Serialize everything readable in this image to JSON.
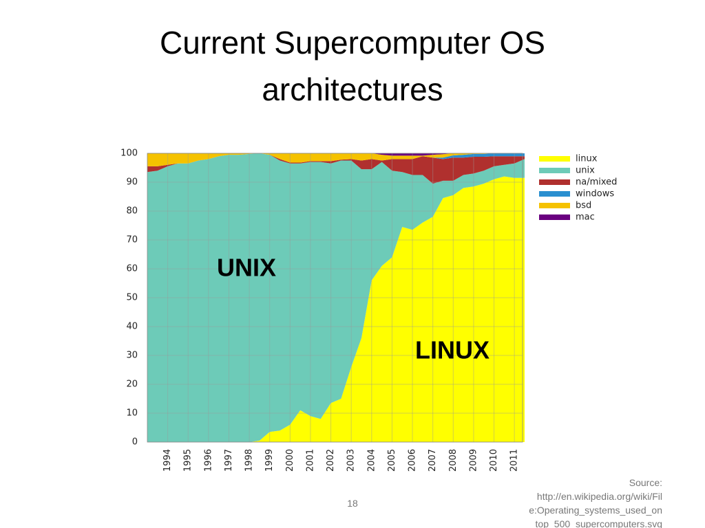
{
  "slide": {
    "title": "Current Supercomputer OS architectures",
    "page_number": "18",
    "source_lines": [
      "Source:",
      "http://en.wikipedia.org/wiki/Fil",
      "e:Operating_systems_used_on",
      "top_500_supercomputers.svg"
    ]
  },
  "chart_data": {
    "type": "stacked_area",
    "x": [
      1993,
      1993.5,
      1994,
      1994.5,
      1995,
      1995.5,
      1996,
      1996.5,
      1997,
      1997.5,
      1998,
      1998.5,
      1999,
      1999.5,
      2000,
      2000.5,
      2001,
      2001.5,
      2002,
      2002.5,
      2003,
      2003.5,
      2004,
      2004.5,
      2005,
      2005.5,
      2006,
      2006.5,
      2007,
      2007.5,
      2008,
      2008.5,
      2009,
      2009.5,
      2010,
      2010.5,
      2011,
      2011.5
    ],
    "xlim": [
      1993,
      2011.4
    ],
    "xticks": [
      1994,
      1995,
      1996,
      1997,
      1998,
      1999,
      2000,
      2001,
      2002,
      2003,
      2004,
      2005,
      2006,
      2007,
      2008,
      2009,
      2010,
      2011
    ],
    "ylim": [
      0,
      100
    ],
    "yticks": [
      0,
      10,
      20,
      30,
      40,
      50,
      60,
      70,
      80,
      90,
      100
    ],
    "grid": true,
    "legend": "right",
    "series": [
      {
        "name": "linux",
        "color": "#ffff00",
        "values": [
          0,
          0,
          0,
          0,
          0,
          0,
          0,
          0,
          0,
          0,
          0,
          0.5,
          3.5,
          4,
          6,
          11,
          9,
          8,
          13.5,
          15,
          26,
          36,
          56,
          61,
          64,
          74.5,
          73.5,
          76,
          78,
          84.5,
          85.5,
          88,
          88.5,
          89.5,
          91,
          92,
          91.5,
          91.5
        ]
      },
      {
        "name": "unix",
        "color": "#6dcbb8",
        "values": [
          93.5,
          94,
          95.5,
          96.5,
          96.5,
          97.5,
          98,
          99,
          99.5,
          99.5,
          99.8,
          99.5,
          96,
          93.5,
          90.5,
          85.5,
          88,
          89,
          83,
          82.5,
          71.5,
          58.5,
          38.5,
          36,
          30,
          19,
          19,
          16.5,
          11.5,
          6,
          5,
          4.5,
          4.5,
          4.5,
          4.5,
          4,
          5,
          6.5
        ]
      },
      {
        "name": "na/mixed",
        "color": "#b0302e",
        "values": [
          2,
          1.5,
          0.5,
          0,
          0,
          0,
          0,
          0,
          0,
          0,
          0,
          0,
          0,
          0.5,
          0.3,
          0.3,
          0.3,
          0.3,
          0.8,
          0.3,
          0.5,
          3,
          3.5,
          0.5,
          4,
          4.5,
          5.5,
          6.5,
          9,
          7.5,
          8,
          6,
          5.8,
          4.8,
          3.5,
          3,
          2.5,
          1
        ]
      },
      {
        "name": "windows",
        "color": "#2a8fd0",
        "values": [
          0,
          0,
          0,
          0,
          0,
          0,
          0,
          0,
          0,
          0,
          0,
          0,
          0,
          0,
          0,
          0,
          0,
          0,
          0,
          0,
          0,
          0,
          0,
          0,
          0,
          0,
          0,
          0,
          0,
          0.5,
          0.8,
          1,
          1,
          1,
          1,
          1,
          1,
          1
        ]
      },
      {
        "name": "bsd",
        "color": "#f5c200",
        "values": [
          4.5,
          4.5,
          4,
          3.5,
          3.5,
          2.5,
          2,
          1,
          0.5,
          0.5,
          0.2,
          0,
          0.5,
          2,
          3.2,
          3.2,
          2.7,
          2.7,
          2.7,
          2.2,
          2,
          2.5,
          2,
          2,
          1.2,
          1.2,
          1.2,
          0.2,
          1,
          1.2,
          0.7,
          0.5,
          0.2,
          0.2,
          0,
          0,
          0,
          0
        ]
      },
      {
        "name": "mac",
        "color": "#6a0080",
        "values": [
          0,
          0,
          0,
          0,
          0,
          0,
          0,
          0,
          0,
          0,
          0,
          0,
          0,
          0,
          0,
          0,
          0,
          0,
          0,
          0,
          0,
          0,
          0,
          0.5,
          0.8,
          0.8,
          0.8,
          0.8,
          0.5,
          0.3,
          0,
          0,
          0,
          0,
          0,
          0,
          0,
          0
        ]
      }
    ],
    "annotations": [
      "UNIX",
      "LINUX"
    ]
  }
}
